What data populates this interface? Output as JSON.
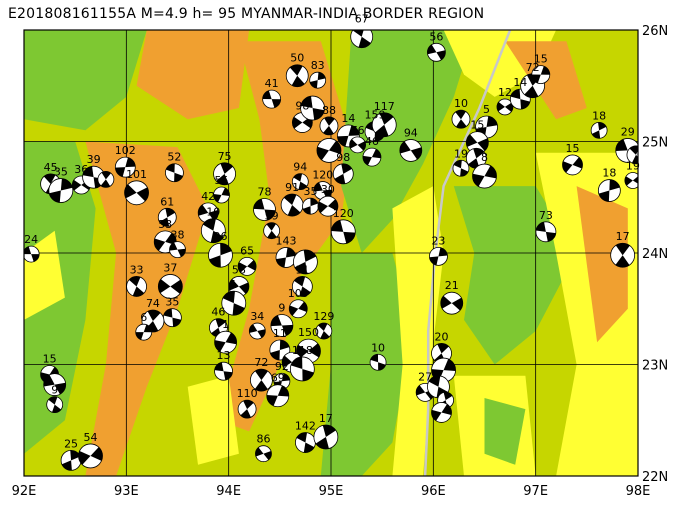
{
  "title": "E201808161155A M=4.9 h= 95 MYANMAR-INDIA BORDER REGION",
  "map": {
    "lon_range": [
      92,
      98
    ],
    "lat_range": [
      22,
      26
    ],
    "lon_ticks": [
      {
        "value": 92,
        "label": "92E"
      },
      {
        "value": 93,
        "label": "93E"
      },
      {
        "value": 94,
        "label": "94E"
      },
      {
        "value": 95,
        "label": "95E"
      },
      {
        "value": 96,
        "label": "96E"
      },
      {
        "value": 97,
        "label": "97E"
      },
      {
        "value": 98,
        "label": "98E"
      }
    ],
    "lat_ticks": [
      {
        "value": 26,
        "label": "26N"
      },
      {
        "value": 25,
        "label": "25N"
      },
      {
        "value": 24,
        "label": "24N"
      },
      {
        "value": 23,
        "label": "23N"
      },
      {
        "value": 22,
        "label": "22N"
      }
    ],
    "colors": {
      "grid": "#000000",
      "frame": "#000000",
      "lowland": "#c6d600",
      "green": "#7ec832",
      "orange": "#f0a030",
      "yellow": "#ffff33",
      "river": "#c8c8c8",
      "beachball_fill": "#000000",
      "beachball_bg": "#ffffff"
    },
    "events": [
      {
        "label": "24",
        "lon": 92.07,
        "lat": 23.99
      },
      {
        "label": "45",
        "lon": 92.26,
        "lat": 24.62
      },
      {
        "label": "35",
        "lon": 92.36,
        "lat": 24.56
      },
      {
        "label": "36",
        "lon": 92.56,
        "lat": 24.61
      },
      {
        "label": "39",
        "lon": 92.68,
        "lat": 24.68
      },
      {
        "label": "",
        "lon": 92.8,
        "lat": 24.66
      },
      {
        "label": "102",
        "lon": 92.99,
        "lat": 24.77
      },
      {
        "label": "101",
        "lon": 93.1,
        "lat": 24.54
      },
      {
        "label": "52",
        "lon": 93.47,
        "lat": 24.72
      },
      {
        "label": "75",
        "lon": 93.96,
        "lat": 24.71
      },
      {
        "label": "55",
        "lon": 93.93,
        "lat": 24.52
      },
      {
        "label": "42",
        "lon": 93.8,
        "lat": 24.36
      },
      {
        "label": "10",
        "lon": 93.85,
        "lat": 24.2
      },
      {
        "label": "61",
        "lon": 93.4,
        "lat": 24.32
      },
      {
        "label": "53",
        "lon": 93.38,
        "lat": 24.1
      },
      {
        "label": "38",
        "lon": 93.5,
        "lat": 24.03
      },
      {
        "label": "33",
        "lon": 93.1,
        "lat": 23.7
      },
      {
        "label": "96",
        "lon": 93.92,
        "lat": 23.98
      },
      {
        "label": "65",
        "lon": 94.18,
        "lat": 23.88
      },
      {
        "label": "78",
        "lon": 94.35,
        "lat": 24.39
      },
      {
        "label": "59",
        "lon": 94.42,
        "lat": 24.2
      },
      {
        "label": "143",
        "lon": 94.56,
        "lat": 23.96
      },
      {
        "label": "37",
        "lon": 93.43,
        "lat": 23.7
      },
      {
        "label": "35",
        "lon": 93.45,
        "lat": 23.42
      },
      {
        "label": "74",
        "lon": 93.26,
        "lat": 23.39
      },
      {
        "label": "6",
        "lon": 93.17,
        "lat": 23.29
      },
      {
        "label": "58",
        "lon": 94.1,
        "lat": 23.7
      },
      {
        "label": "1",
        "lon": 94.05,
        "lat": 23.55
      },
      {
        "label": "46",
        "lon": 93.9,
        "lat": 23.33
      },
      {
        "label": "1",
        "lon": 93.97,
        "lat": 23.2
      },
      {
        "label": "34",
        "lon": 94.28,
        "lat": 23.3
      },
      {
        "label": "11",
        "lon": 94.72,
        "lat": 23.7
      },
      {
        "label": "",
        "lon": 94.75,
        "lat": 23.92
      },
      {
        "label": "109",
        "lon": 94.68,
        "lat": 23.5
      },
      {
        "label": "9",
        "lon": 94.52,
        "lat": 23.35
      },
      {
        "label": "129",
        "lon": 94.93,
        "lat": 23.3
      },
      {
        "label": "11",
        "lon": 94.5,
        "lat": 23.13
      },
      {
        "label": "150",
        "lon": 94.78,
        "lat": 23.12
      },
      {
        "label": "13",
        "lon": 93.95,
        "lat": 22.94
      },
      {
        "label": "72",
        "lon": 94.32,
        "lat": 22.86
      },
      {
        "label": "92",
        "lon": 94.52,
        "lat": 22.85
      },
      {
        "label": "",
        "lon": 94.62,
        "lat": 23.02
      },
      {
        "label": "118",
        "lon": 94.72,
        "lat": 22.96
      },
      {
        "label": "110",
        "lon": 94.18,
        "lat": 22.6
      },
      {
        "label": "69",
        "lon": 94.48,
        "lat": 22.72
      },
      {
        "label": "86",
        "lon": 94.34,
        "lat": 22.2
      },
      {
        "label": "142",
        "lon": 94.75,
        "lat": 22.3
      },
      {
        "label": "17",
        "lon": 94.95,
        "lat": 22.35
      },
      {
        "label": "15",
        "lon": 92.25,
        "lat": 22.91
      },
      {
        "label": "",
        "lon": 92.3,
        "lat": 22.82
      },
      {
        "label": "9",
        "lon": 92.3,
        "lat": 22.64
      },
      {
        "label": "25",
        "lon": 92.46,
        "lat": 22.14
      },
      {
        "label": "54",
        "lon": 92.65,
        "lat": 22.18
      },
      {
        "label": "41",
        "lon": 94.42,
        "lat": 25.38
      },
      {
        "label": "50",
        "lon": 94.67,
        "lat": 25.59
      },
      {
        "label": "83",
        "lon": 94.87,
        "lat": 25.55
      },
      {
        "label": "98",
        "lon": 94.72,
        "lat": 25.17
      },
      {
        "label": "",
        "lon": 94.82,
        "lat": 25.3
      },
      {
        "label": "88",
        "lon": 94.98,
        "lat": 25.14
      },
      {
        "label": "14",
        "lon": 95.17,
        "lat": 25.05
      },
      {
        "label": "76",
        "lon": 95.26,
        "lat": 24.97
      },
      {
        "label": "159",
        "lon": 95.43,
        "lat": 25.09
      },
      {
        "label": "117",
        "lon": 95.52,
        "lat": 25.15
      },
      {
        "label": "46",
        "lon": 95.4,
        "lat": 24.86
      },
      {
        "label": "94",
        "lon": 95.78,
        "lat": 24.92
      },
      {
        "label": "94",
        "lon": 94.7,
        "lat": 24.64
      },
      {
        "label": "98",
        "lon": 95.12,
        "lat": 24.71
      },
      {
        "label": "",
        "lon": 94.98,
        "lat": 24.92
      },
      {
        "label": "120",
        "lon": 94.92,
        "lat": 24.56
      },
      {
        "label": "91",
        "lon": 94.62,
        "lat": 24.43
      },
      {
        "label": "35",
        "lon": 94.8,
        "lat": 24.42
      },
      {
        "label": "30",
        "lon": 94.97,
        "lat": 24.42
      },
      {
        "label": "120",
        "lon": 95.12,
        "lat": 24.19
      },
      {
        "label": "10",
        "lon": 96.27,
        "lat": 25.2
      },
      {
        "label": "5",
        "lon": 96.52,
        "lat": 25.13
      },
      {
        "label": "12",
        "lon": 96.7,
        "lat": 25.31
      },
      {
        "label": "14",
        "lon": 96.85,
        "lat": 25.38
      },
      {
        "label": "72",
        "lon": 96.97,
        "lat": 25.5
      },
      {
        "label": "15",
        "lon": 97.05,
        "lat": 25.6
      },
      {
        "label": "15",
        "lon": 96.43,
        "lat": 24.99
      },
      {
        "label": "19",
        "lon": 96.27,
        "lat": 24.76
      },
      {
        "label": "",
        "lon": 96.42,
        "lat": 24.85
      },
      {
        "label": "8",
        "lon": 96.5,
        "lat": 24.69
      },
      {
        "label": "56",
        "lon": 96.03,
        "lat": 25.8
      },
      {
        "label": "67",
        "lon": 95.3,
        "lat": 25.94
      },
      {
        "label": "18",
        "lon": 97.62,
        "lat": 25.1
      },
      {
        "label": "15",
        "lon": 97.36,
        "lat": 24.79
      },
      {
        "label": "29",
        "lon": 97.9,
        "lat": 24.92
      },
      {
        "label": "",
        "lon": 97.98,
        "lat": 24.88
      },
      {
        "label": "18",
        "lon": 97.72,
        "lat": 24.56
      },
      {
        "label": "19",
        "lon": 97.95,
        "lat": 24.65
      },
      {
        "label": "73",
        "lon": 97.1,
        "lat": 24.19
      },
      {
        "label": "17",
        "lon": 97.85,
        "lat": 23.98
      },
      {
        "label": "23",
        "lon": 96.05,
        "lat": 23.97
      },
      {
        "label": "21",
        "lon": 96.18,
        "lat": 23.55
      },
      {
        "label": "10",
        "lon": 95.46,
        "lat": 23.02
      },
      {
        "label": "20",
        "lon": 96.08,
        "lat": 23.1
      },
      {
        "label": "",
        "lon": 96.1,
        "lat": 22.95
      },
      {
        "label": "27",
        "lon": 95.92,
        "lat": 22.75
      },
      {
        "label": "",
        "lon": 96.05,
        "lat": 22.8
      },
      {
        "label": "",
        "lon": 96.12,
        "lat": 22.68
      },
      {
        "label": "",
        "lon": 96.08,
        "lat": 22.57
      }
    ]
  }
}
